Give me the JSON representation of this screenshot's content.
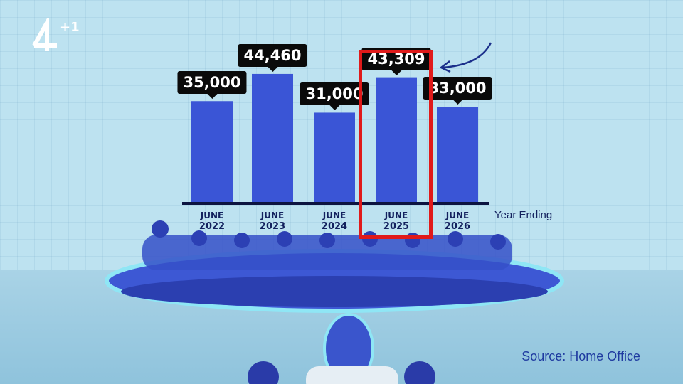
{
  "channel": {
    "logo": "4",
    "suffix": "+1"
  },
  "source": "Source: Home Office",
  "chart_data": {
    "type": "bar",
    "xlabel": "Year Ending",
    "categories": [
      {
        "month": "JUNE",
        "year": "2022"
      },
      {
        "month": "JUNE",
        "year": "2023"
      },
      {
        "month": "JUNE",
        "year": "2024"
      },
      {
        "month": "JUNE",
        "year": "2025"
      },
      {
        "month": "JUNE",
        "year": "2026"
      }
    ],
    "values": [
      35000,
      44460,
      31000,
      43309,
      33000
    ],
    "data_labels": [
      "35,000",
      "44,460",
      "31,000",
      "43,309",
      "33,000"
    ],
    "highlighted_index": 3,
    "ylim": [
      0,
      50000
    ],
    "grid": false,
    "colors": {
      "bar": "#3a55d6",
      "label_bg": "#0a0a0a",
      "highlight": "#e01a1a",
      "axis": "#0c1440"
    }
  }
}
